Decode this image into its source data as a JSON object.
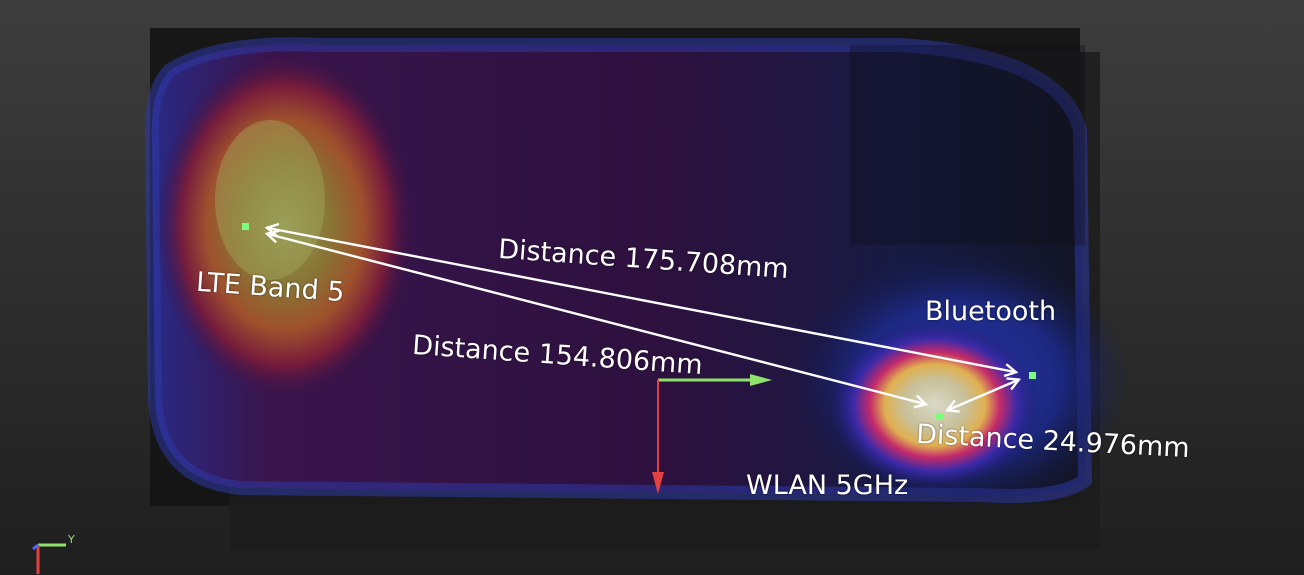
{
  "antennas": [
    {
      "name": "LTE Band 5"
    },
    {
      "name": "Bluetooth"
    },
    {
      "name": "WLAN 5GHz"
    }
  ],
  "measurements": [
    {
      "from": "LTE Band 5",
      "to": "Bluetooth",
      "label": "Distance",
      "value": "175.708mm"
    },
    {
      "from": "LTE Band 5",
      "to": "WLAN 5GHz",
      "label": "Distance",
      "value": "154.806mm"
    },
    {
      "from": "WLAN 5GHz",
      "to": "Bluetooth",
      "label": "Distance",
      "value": "24.976mm"
    }
  ],
  "axis": {
    "y_label": "Y"
  },
  "colors": {
    "arrow": "#ffffff",
    "marker": "#7dff7d",
    "axis_green": "#8fe36a",
    "axis_red": "#e14040"
  }
}
